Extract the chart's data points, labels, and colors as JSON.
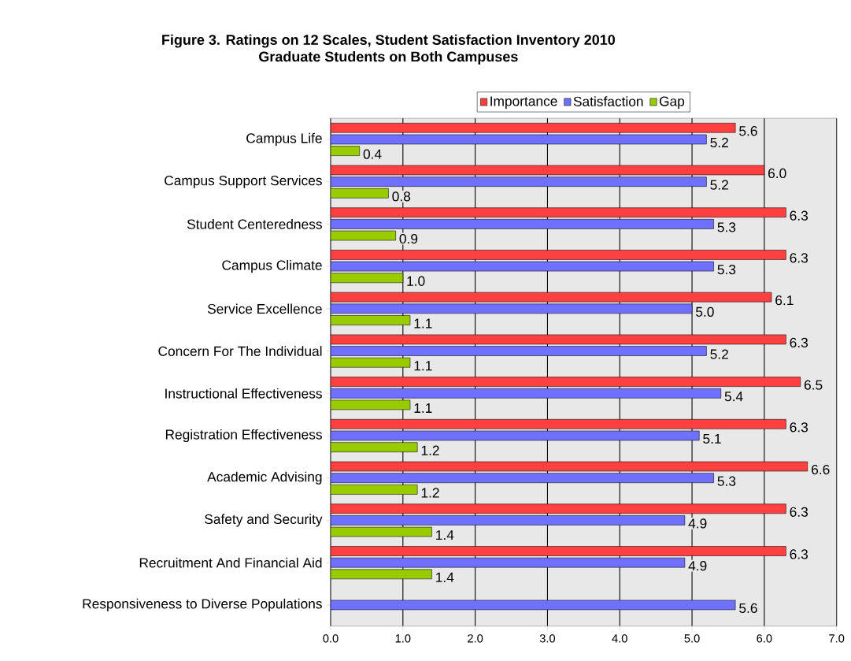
{
  "chart_data": {
    "type": "bar",
    "orientation": "horizontal",
    "title": "Figure 3. Ratings on 12 Scales, Student Satisfaction Inventory 2010",
    "subtitle": "Graduate Students on Both Campuses",
    "categories": [
      "Campus Life",
      "Campus Support Services",
      "Student Centeredness",
      "Campus Climate",
      "Service Excellence",
      "Concern For The Individual",
      "Instructional Effectiveness",
      "Registration Effectiveness",
      "Academic Advising",
      "Safety and Security",
      "Recruitment And Financial Aid",
      "Responsiveness to Diverse Populations"
    ],
    "series": [
      {
        "name": "Importance",
        "color": "#ff4040",
        "values": [
          5.6,
          6.0,
          6.3,
          6.3,
          6.1,
          6.3,
          6.5,
          6.3,
          6.6,
          6.3,
          6.3,
          null
        ],
        "value_labels": [
          "5.6",
          "6.0",
          "6.3",
          "6.3",
          "6.1",
          "6.3",
          "6.5",
          "6.3",
          "6.6",
          "6.3",
          "6.3",
          null
        ]
      },
      {
        "name": "Satisfaction",
        "color": "#7070ff",
        "values": [
          5.2,
          5.2,
          5.3,
          5.3,
          5.0,
          5.2,
          5.4,
          5.1,
          5.3,
          4.9,
          4.9,
          5.6
        ],
        "value_labels": [
          "5.2",
          "5.2",
          "5.3",
          "5.3",
          "5.0",
          "5.2",
          "5.4",
          "5.1",
          "5.3",
          "4.9",
          "4.9",
          "5.6"
        ]
      },
      {
        "name": "Gap",
        "color": "#99cc00",
        "values": [
          0.4,
          0.8,
          0.9,
          1.0,
          1.1,
          1.1,
          1.1,
          1.2,
          1.2,
          1.4,
          1.4,
          null
        ],
        "value_labels": [
          "0.4",
          "0.8",
          "0.9",
          "1.0",
          "1.1",
          "1.1",
          "1.1",
          "1.2",
          "1.2",
          "1.4",
          "1.4",
          null
        ]
      }
    ],
    "xlim": [
      0,
      7
    ],
    "xticks": [
      {
        "value": 0,
        "label": "0.0"
      },
      {
        "value": 1,
        "label": "1.0"
      },
      {
        "value": 2,
        "label": "2.0"
      },
      {
        "value": 3,
        "label": "3.0"
      },
      {
        "value": 4,
        "label": "4.0"
      },
      {
        "value": 5,
        "label": "5.0"
      },
      {
        "value": 6,
        "label": "6.0"
      },
      {
        "value": 7,
        "label": "7.0"
      }
    ],
    "grid": "x",
    "legend": "top"
  }
}
